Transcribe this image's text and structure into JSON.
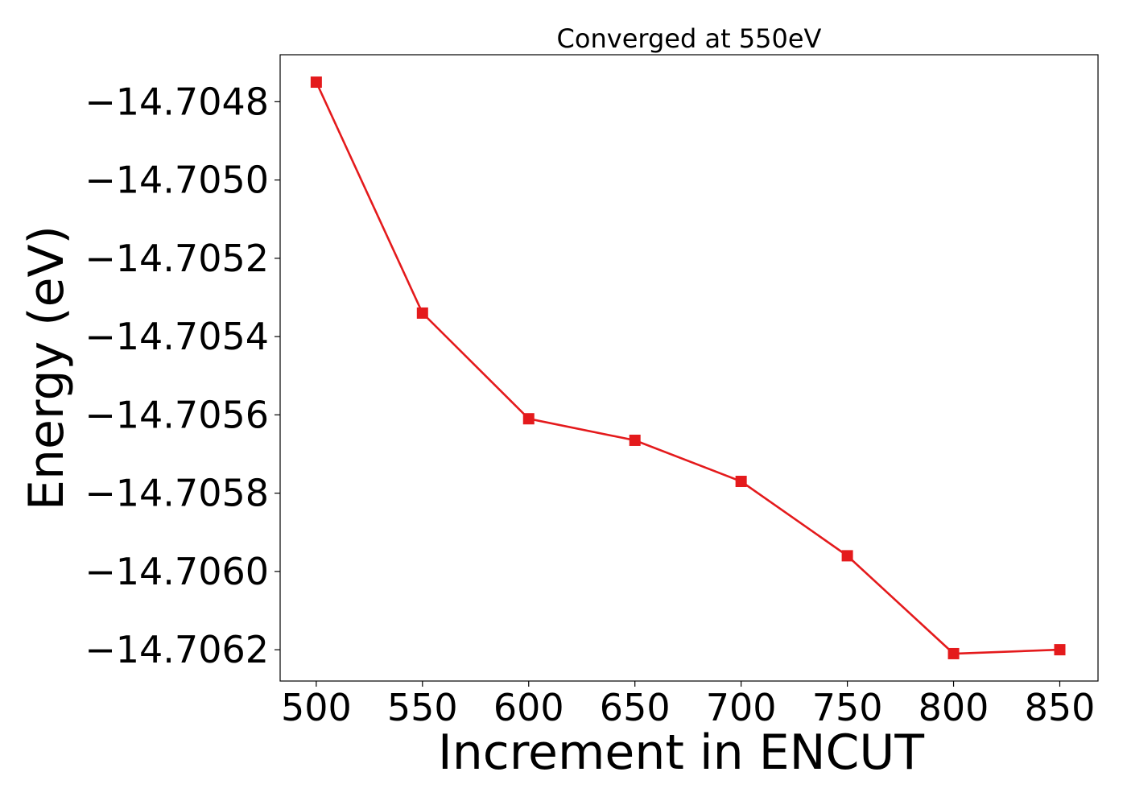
{
  "chart_data": {
    "type": "line",
    "title": "Converged at 550eV",
    "xlabel": "Increment in ENCUT",
    "ylabel": "Energy (eV)",
    "x": [
      500,
      550,
      600,
      650,
      700,
      750,
      800,
      850
    ],
    "series": [
      {
        "values": [
          -14.70475,
          -14.70534,
          -14.70561,
          -14.705665,
          -14.70577,
          -14.70596,
          -14.70621,
          -14.7062
        ],
        "color": "#e41a1c",
        "marker": "square"
      }
    ],
    "xlim": [
      483,
      868
    ],
    "ylim": [
      -14.70628,
      -14.70468
    ],
    "xticks": [
      500,
      550,
      600,
      650,
      700,
      750,
      800,
      850
    ],
    "xtick_labels": [
      "500",
      "550",
      "600",
      "650",
      "700",
      "750",
      "800",
      "850"
    ],
    "yticks": [
      -14.7048,
      -14.705,
      -14.7052,
      -14.7054,
      -14.7056,
      -14.7058,
      -14.706,
      -14.7062
    ],
    "ytick_labels": [
      "−14.7048",
      "−14.7050",
      "−14.7052",
      "−14.7054",
      "−14.7056",
      "−14.7058",
      "−14.7060",
      "−14.7062"
    ],
    "grid": false,
    "legend": "none"
  }
}
